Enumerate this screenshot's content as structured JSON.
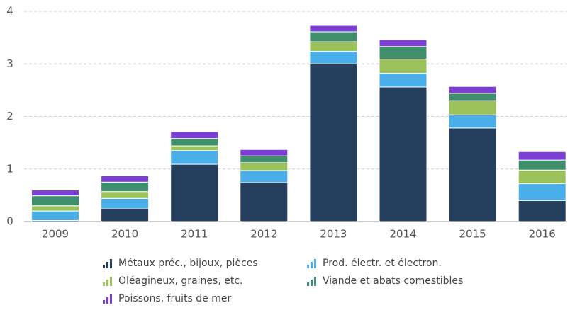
{
  "chart_data": {
    "type": "stacked_bar",
    "categories": [
      "2009",
      "2010",
      "2011",
      "2012",
      "2013",
      "2014",
      "2015",
      "2016"
    ],
    "series": [
      {
        "name": "Métaux préc., bijoux, pièces",
        "color": "#253f5e",
        "values": [
          0.02,
          0.24,
          1.09,
          0.74,
          3.0,
          2.56,
          1.78,
          0.4
        ]
      },
      {
        "name": "Prod. électr. et électron.",
        "color": "#4aaee9",
        "values": [
          0.18,
          0.2,
          0.26,
          0.23,
          0.24,
          0.26,
          0.25,
          0.32
        ]
      },
      {
        "name": "Oléagineux, graines, etc.",
        "color": "#9bc25a",
        "values": [
          0.1,
          0.13,
          0.09,
          0.15,
          0.18,
          0.27,
          0.27,
          0.26
        ]
      },
      {
        "name": "Viande et abats comestibles",
        "color": "#3f8f6d",
        "values": [
          0.19,
          0.18,
          0.14,
          0.13,
          0.19,
          0.24,
          0.14,
          0.19
        ]
      },
      {
        "name": "Poissons, fruits de mer",
        "color": "#7b3fd6",
        "values": [
          0.11,
          0.12,
          0.13,
          0.12,
          0.12,
          0.13,
          0.13,
          0.16
        ]
      }
    ],
    "ylim": [
      0,
      4
    ],
    "yticks": [
      0,
      1,
      2,
      3,
      4
    ],
    "grid": true
  }
}
